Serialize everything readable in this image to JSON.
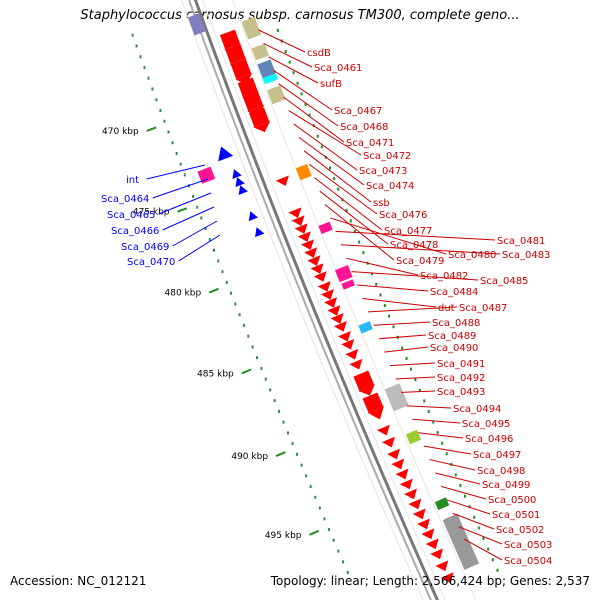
{
  "title": "Staphylococcus carnosus subsp. carnosus TM300, complete geno...",
  "footer": {
    "accession_label": "Accession:",
    "accession": "NC_012121",
    "topology_label": "Topology:",
    "topology": "linear;",
    "length_label": "Length:",
    "length": "2,566,424 bp;",
    "genes_label": "Genes:",
    "genes": "2,537"
  },
  "colors": {
    "backbone": "#888888",
    "tick_major": "#228b22",
    "tick_minor": "#2e8b57",
    "forward_label": "#cc0000",
    "reverse_label": "#0000bb",
    "cds_forward": "#ff0000",
    "cds_reverse": "#0000ff"
  },
  "kbp_labels": [
    "470 kbp",
    "475 kbp",
    "480 kbp",
    "485 kbp",
    "490 kbp",
    "495 kbp"
  ],
  "reverse_labels": [
    "int",
    "Sca_0464",
    "Sca_0465",
    "Sca_0466",
    "Sca_0469",
    "Sca_0470"
  ],
  "forward_labels": [
    "csdB",
    "Sca_0461",
    "sufB",
    "Sca_0467",
    "Sca_0468",
    "Sca_0471",
    "Sca_0472",
    "Sca_0473",
    "Sca_0474",
    "ssb",
    "Sca_0476",
    "Sca_0477",
    "Sca_0478",
    "Sca_0479",
    "Sca_0480",
    "Sca_0481",
    "Sca_0483",
    "Sca_0482",
    "Sca_0485",
    "Sca_0484",
    "dut",
    "Sca_0487",
    "Sca_0488",
    "Sca_0489",
    "Sca_0490",
    "Sca_0491",
    "Sca_0492",
    "Sca_0493",
    "Sca_0494",
    "Sca_0495",
    "Sca_0496",
    "Sca_0497",
    "Sca_0498",
    "Sca_0499",
    "Sca_0500",
    "Sca_0501",
    "Sca_0502",
    "Sca_0503",
    "Sca_0504"
  ]
}
